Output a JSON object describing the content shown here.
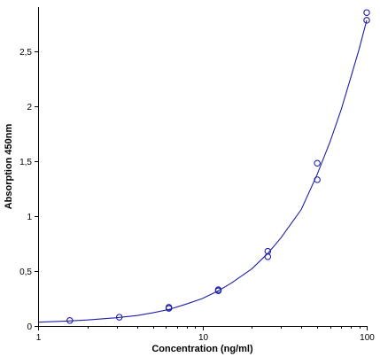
{
  "chart_data": {
    "type": "scatter",
    "title": "",
    "xlabel": "Concentration (ng/ml)",
    "ylabel": "Absorption 450nm",
    "x_scale": "log",
    "xlim": [
      1,
      100
    ],
    "ylim": [
      0,
      2.9
    ],
    "x_ticks": [
      {
        "value": 1,
        "label": "1"
      },
      {
        "value": 10,
        "label": "10"
      },
      {
        "value": 100,
        "label": "100"
      }
    ],
    "y_ticks": [
      {
        "value": 0,
        "label": "0"
      },
      {
        "value": 0.5,
        "label": "0,5"
      },
      {
        "value": 1,
        "label": "1"
      },
      {
        "value": 1.5,
        "label": "1,5"
      },
      {
        "value": 2,
        "label": "2"
      },
      {
        "value": 2.5,
        "label": "2,5"
      }
    ],
    "grid": false,
    "legend": "none",
    "color": "#1f1fa8",
    "points": [
      {
        "x": 1.56,
        "y": 0.05
      },
      {
        "x": 3.12,
        "y": 0.08
      },
      {
        "x": 6.25,
        "y": 0.16
      },
      {
        "x": 6.25,
        "y": 0.17
      },
      {
        "x": 12.5,
        "y": 0.32
      },
      {
        "x": 12.5,
        "y": 0.33
      },
      {
        "x": 25,
        "y": 0.63
      },
      {
        "x": 25,
        "y": 0.68
      },
      {
        "x": 50,
        "y": 1.33
      },
      {
        "x": 50,
        "y": 1.48
      },
      {
        "x": 100,
        "y": 2.78
      },
      {
        "x": 100,
        "y": 2.85
      }
    ],
    "fit_curve": {
      "x": [
        1,
        1.5,
        2,
        3,
        4,
        5,
        6.25,
        8,
        10,
        12.5,
        15,
        20,
        25,
        30,
        40,
        50,
        60,
        70,
        80,
        90,
        100
      ],
      "y": [
        0.035,
        0.045,
        0.055,
        0.075,
        0.095,
        0.12,
        0.15,
        0.2,
        0.25,
        0.32,
        0.39,
        0.52,
        0.66,
        0.8,
        1.06,
        1.38,
        1.68,
        1.97,
        2.26,
        2.52,
        2.78
      ]
    }
  }
}
